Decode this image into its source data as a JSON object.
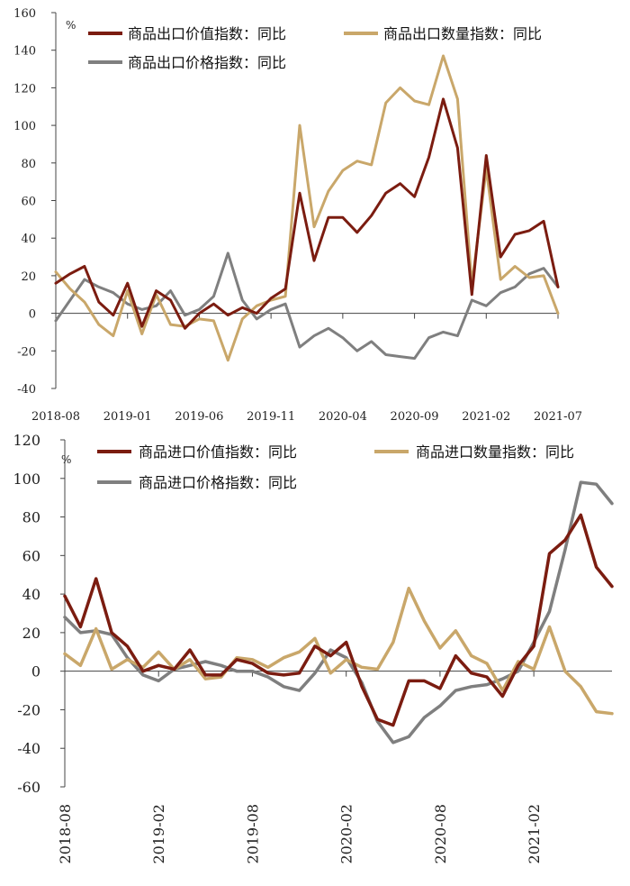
{
  "chart_data": [
    {
      "type": "line",
      "title": "",
      "unit": "%",
      "ylim": [
        -40,
        160
      ],
      "yticks": [
        -40,
        -20,
        0,
        20,
        40,
        60,
        80,
        100,
        120,
        140,
        160
      ],
      "x_labels": [
        "2018-08",
        "2019-01",
        "2019-06",
        "2019-11",
        "2020-04",
        "2020-09",
        "2021-02",
        "2021-07"
      ],
      "x_label_month_index": [
        0,
        5,
        10,
        15,
        20,
        25,
        30,
        35
      ],
      "months": 36,
      "series": [
        {
          "name": "商品出口价值指数：同比",
          "color": "#7b1c10",
          "values": [
            16,
            21,
            25,
            6,
            -1,
            16,
            -7,
            12,
            7,
            -8,
            0,
            5,
            -1,
            3,
            0,
            8,
            13,
            64,
            28,
            51,
            51,
            43,
            52,
            64,
            69,
            62,
            83,
            114,
            88,
            10,
            84,
            30,
            42,
            44,
            49,
            14
          ]
        },
        {
          "name": "商品出口数量指数：同比",
          "color": "#c9a76a",
          "values": [
            22,
            13,
            6,
            -6,
            -12,
            12,
            -11,
            10,
            -6,
            -7,
            -3,
            -4,
            -25,
            -3,
            4,
            7,
            9,
            100,
            46,
            65,
            76,
            81,
            79,
            112,
            120,
            113,
            111,
            137,
            114,
            15,
            77,
            18,
            25,
            19,
            20,
            0
          ]
        },
        {
          "name": "商品出口价格指数：同比",
          "color": "#7f7f7f",
          "values": [
            -4,
            7,
            18,
            14,
            11,
            5,
            2,
            4,
            12,
            -1,
            2,
            9,
            32,
            7,
            -3,
            2,
            5,
            -18,
            -12,
            -8,
            -13,
            -20,
            -15,
            -22,
            -23,
            -24,
            -13,
            -10,
            -12,
            7,
            4,
            11,
            14,
            21,
            24,
            14
          ]
        }
      ]
    },
    {
      "type": "line",
      "title": "",
      "unit": "%",
      "ylim": [
        -60,
        120
      ],
      "yticks": [
        -60,
        -40,
        -20,
        0,
        20,
        40,
        60,
        80,
        100,
        120
      ],
      "x_labels": [
        "2018-08",
        "2019-02",
        "2019-08",
        "2020-02",
        "2020-08",
        "2021-02"
      ],
      "x_label_month_index": [
        0,
        6,
        12,
        18,
        24,
        30
      ],
      "months": 36,
      "series": [
        {
          "name": "商品进口价值指数：同比",
          "color": "#7b1c10",
          "values": [
            39,
            23,
            48,
            20,
            13,
            0,
            3,
            1,
            11,
            -2,
            -2,
            6,
            4,
            -1,
            -2,
            -1,
            13,
            8,
            15,
            -8,
            -25,
            -28,
            -5,
            -5,
            -9,
            8,
            -1,
            -3,
            -13,
            3,
            13,
            61,
            68,
            81,
            54,
            44
          ]
        },
        {
          "name": "商品进口数量指数：同比",
          "color": "#c9a76a",
          "values": [
            9,
            3,
            22,
            1,
            6,
            2,
            10,
            1,
            6,
            -4,
            -3,
            7,
            6,
            2,
            7,
            10,
            17,
            -1,
            6,
            2,
            1,
            15,
            43,
            26,
            12,
            21,
            8,
            4,
            -10,
            5,
            1,
            23,
            0,
            -8,
            -21,
            -22
          ]
        },
        {
          "name": "商品进口价格指数：同比",
          "color": "#7f7f7f",
          "values": [
            28,
            20,
            21,
            19,
            7,
            -2,
            -5,
            1,
            3,
            5,
            3,
            0,
            0,
            -3,
            -8,
            -10,
            -1,
            11,
            7,
            -6,
            -26,
            -37,
            -34,
            -24,
            -18,
            -10,
            -8,
            -7,
            -4,
            0,
            15,
            31,
            63,
            98,
            97,
            87
          ]
        }
      ]
    }
  ]
}
